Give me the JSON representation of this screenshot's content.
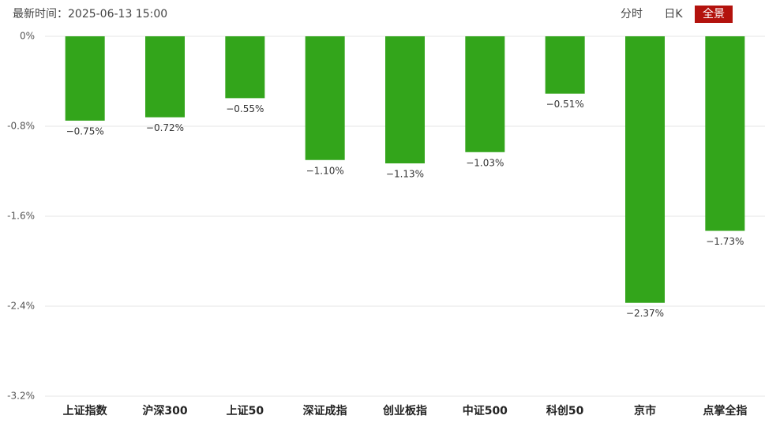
{
  "header": {
    "time": "最新时间：2025-06-13 15:00",
    "tabs": [
      "分时",
      "日K",
      "全景"
    ],
    "active_tab": 2
  },
  "chart_data": {
    "type": "bar",
    "categories": [
      "上证指数",
      "沪深300",
      "上证50",
      "深证成指",
      "创业板指",
      "中证500",
      "科创50",
      "京市",
      "点掌全指"
    ],
    "values": [
      -0.75,
      -0.72,
      -0.55,
      -1.1,
      -1.13,
      -1.03,
      -0.51,
      -2.37,
      -1.73
    ],
    "value_labels": [
      "−0.75%",
      "−0.72%",
      "−0.55%",
      "−1.10%",
      "−1.13%",
      "−1.03%",
      "−0.51%",
      "−2.37%",
      "−1.73%"
    ],
    "color": "#33a51b",
    "ylim": [
      -3.2,
      0
    ],
    "yticks": [
      {
        "value": 0,
        "label": "0%"
      },
      {
        "value": -0.8,
        "label": "-0.8%"
      },
      {
        "value": -1.6,
        "label": "-1.6%"
      },
      {
        "value": -2.4,
        "label": "-2.4%"
      },
      {
        "value": -3.2,
        "label": "-3.2%"
      }
    ],
    "grid": true
  }
}
